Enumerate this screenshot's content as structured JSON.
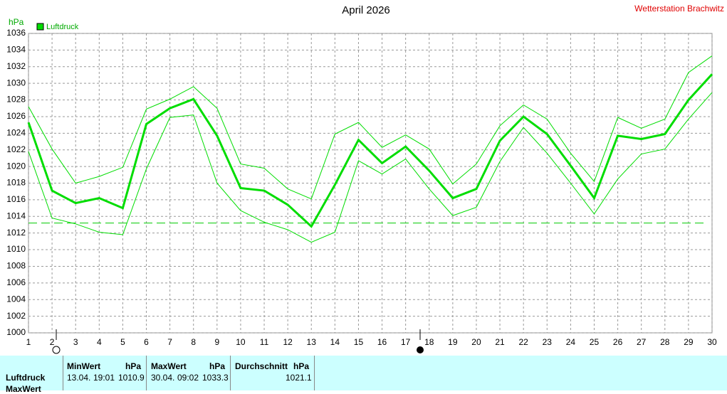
{
  "chart_data": {
    "type": "line",
    "title": "April 2026",
    "subtitle": "Wetterstation Brachwitz",
    "y_label": "hPa",
    "x": [
      1,
      2,
      3,
      4,
      5,
      6,
      7,
      8,
      9,
      10,
      11,
      12,
      13,
      14,
      15,
      16,
      17,
      18,
      19,
      20,
      21,
      22,
      23,
      24,
      25,
      26,
      27,
      28,
      29,
      30
    ],
    "xlim": [
      1,
      30
    ],
    "xticks": [
      1,
      2,
      3,
      4,
      5,
      6,
      7,
      8,
      9,
      10,
      11,
      12,
      13,
      14,
      15,
      16,
      17,
      18,
      19,
      20,
      21,
      22,
      23,
      24,
      25,
      26,
      27,
      28,
      29,
      30
    ],
    "ylim": [
      1000,
      1036
    ],
    "yticks": [
      1000,
      1002,
      1004,
      1006,
      1008,
      1010,
      1012,
      1014,
      1016,
      1018,
      1020,
      1022,
      1024,
      1026,
      1028,
      1030,
      1032,
      1034,
      1036
    ],
    "grid": true,
    "reference_line": 1013.2,
    "series": [
      {
        "name": "Luftdruck",
        "color": "#00dd00",
        "values": [
          1025.3,
          1017.1,
          1015.6,
          1016.2,
          1015.0,
          1025.1,
          1027.0,
          1028.1,
          1023.7,
          1017.4,
          1017.1,
          1015.4,
          1012.8,
          1017.8,
          1023.2,
          1020.4,
          1022.4,
          1019.5,
          1016.2,
          1017.3,
          1023.1,
          1026.0,
          1023.9,
          1020.1,
          1016.2,
          1023.7,
          1023.3,
          1023.9,
          1028.0,
          1031.1
        ]
      },
      {
        "color": "#00dd00",
        "values": [
          1027.2,
          1022.1,
          1018.0,
          1018.8,
          1019.9,
          1026.9,
          1028.1,
          1029.6,
          1027.0,
          1020.3,
          1019.8,
          1017.3,
          1016.1,
          1023.9,
          1025.3,
          1022.3,
          1023.8,
          1022.1,
          1017.9,
          1020.3,
          1024.9,
          1027.4,
          1025.7,
          1021.6,
          1018.2,
          1025.9,
          1024.6,
          1025.7,
          1031.3,
          1033.3
        ]
      },
      {
        "color": "#00dd00",
        "values": [
          1021.8,
          1013.8,
          1013.1,
          1012.1,
          1011.8,
          1019.7,
          1025.9,
          1026.2,
          1018.0,
          1014.7,
          1013.3,
          1012.4,
          1010.9,
          1012.1,
          1020.7,
          1019.1,
          1020.9,
          1017.3,
          1014.1,
          1015.1,
          1020.6,
          1024.7,
          1021.6,
          1018.0,
          1014.3,
          1018.5,
          1021.5,
          1022.1,
          1025.7,
          1028.9
        ]
      }
    ]
  },
  "stats_table": {
    "row_labels": [
      "Luftdruck",
      "MaxWert"
    ],
    "columns": [
      {
        "header": "MinWert",
        "unit": "hPa",
        "date": "13.04.",
        "time": "19:01",
        "value": 1010.9
      },
      {
        "header": "MaxWert",
        "unit": "hPa",
        "date": "30.04.",
        "time": "09:02",
        "value": 1033.3
      },
      {
        "header": "Durchschnitt",
        "unit": "hPa",
        "value": 1021.1
      }
    ]
  }
}
